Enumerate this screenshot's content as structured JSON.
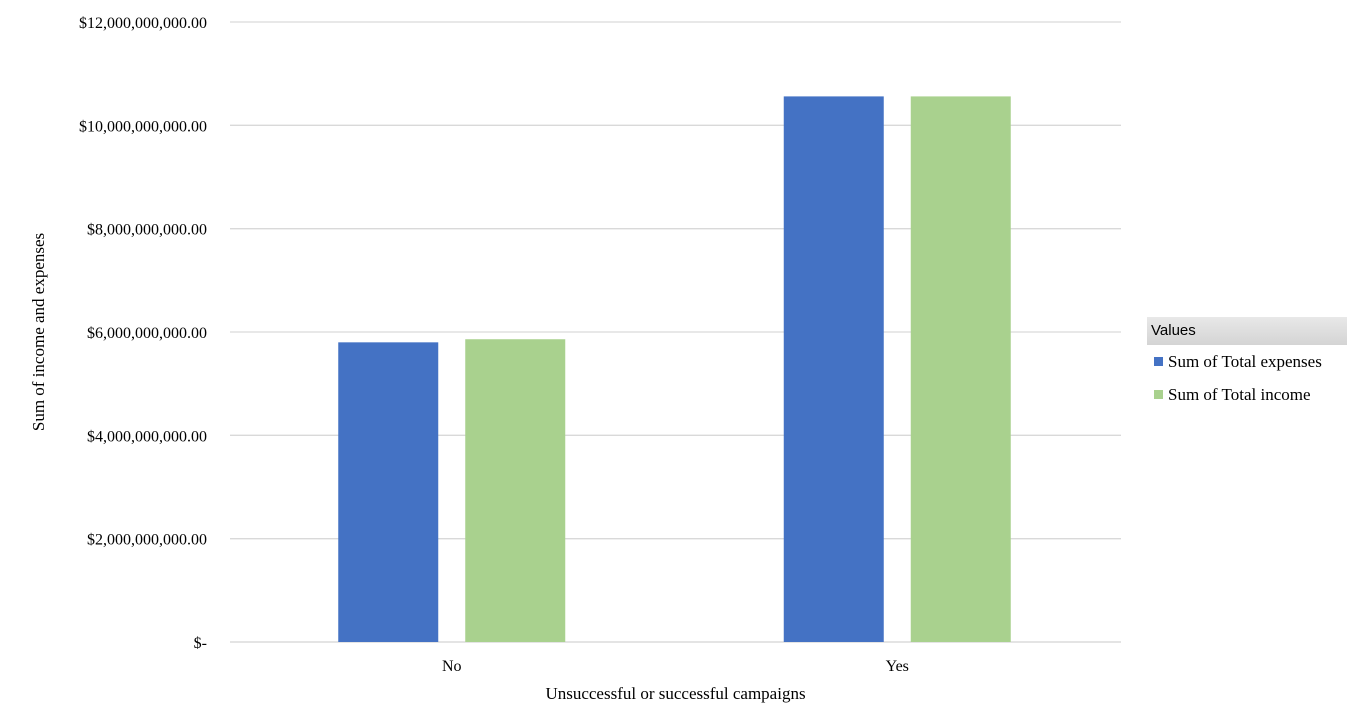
{
  "chart_data": {
    "type": "bar",
    "categories": [
      "No",
      "Yes"
    ],
    "series": [
      {
        "name": "Sum of Total expenses",
        "color": "#4472C4",
        "values": [
          5800000000,
          10560000000
        ]
      },
      {
        "name": "Sum of Total income",
        "color": "#A9D18E",
        "values": [
          5860000000,
          10560000000
        ]
      }
    ],
    "xlabel": "Unsuccessful or successful campaigns",
    "ylabel": "Sum of income and expenses",
    "ylim": [
      0,
      12000000000
    ],
    "yticks": [
      {
        "value": 0,
        "label": "$-"
      },
      {
        "value": 2000000000,
        "label": "$2,000,000,000.00"
      },
      {
        "value": 4000000000,
        "label": "$4,000,000,000.00"
      },
      {
        "value": 6000000000,
        "label": "$6,000,000,000.00"
      },
      {
        "value": 8000000000,
        "label": "$8,000,000,000.00"
      },
      {
        "value": 10000000000,
        "label": "$10,000,000,000.00"
      },
      {
        "value": 12000000000,
        "label": "$12,000,000,000.00"
      }
    ],
    "grid": true,
    "legend": {
      "title": "Values",
      "position": "right"
    }
  }
}
